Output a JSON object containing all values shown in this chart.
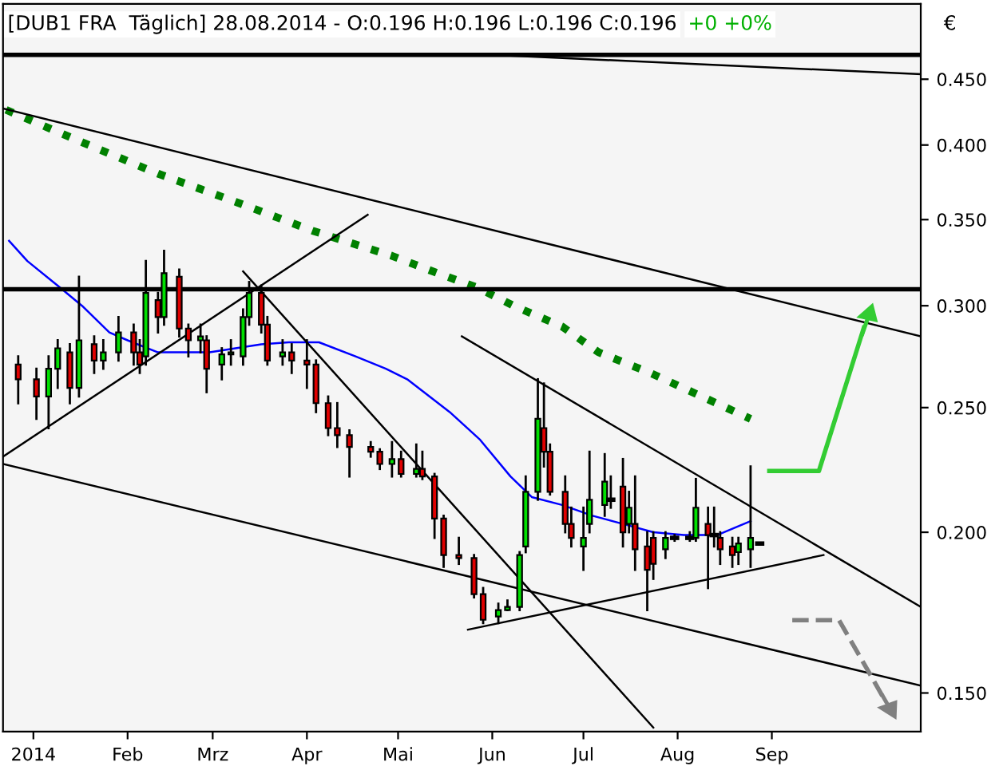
{
  "chart_data": {
    "type": "candlestick",
    "title": "[DUB1 FRA  Täglich] 28.08.2014 - O:0.196 H:0.196 L:0.196 C:0.196",
    "annotations": [
      "+0 +0%"
    ],
    "ylabel": "€",
    "x": [
      "2013-12-27",
      "2014-01-02",
      "2014-01-06",
      "2014-01-09",
      "2014-01-13",
      "2014-01-16",
      "2014-01-21",
      "2014-01-24",
      "2014-01-29",
      "2014-02-03",
      "2014-02-05",
      "2014-02-07",
      "2014-02-11",
      "2014-02-13",
      "2014-02-18",
      "2014-02-21",
      "2014-02-25",
      "2014-02-27",
      "2014-03-04",
      "2014-03-07",
      "2014-03-11",
      "2014-03-13",
      "2014-03-17",
      "2014-03-19",
      "2014-03-24",
      "2014-03-27",
      "2014-04-01",
      "2014-04-04",
      "2014-04-08",
      "2014-04-11",
      "2014-04-15",
      "2014-04-22",
      "2014-04-25",
      "2014-04-29",
      "2014-05-02",
      "2014-05-07",
      "2014-05-09",
      "2014-05-13",
      "2014-05-16",
      "2014-05-21",
      "2014-05-26",
      "2014-05-29",
      "2014-06-03",
      "2014-06-06",
      "2014-06-10",
      "2014-06-12",
      "2014-06-16",
      "2014-06-18",
      "2014-06-20",
      "2014-06-25",
      "2014-06-27",
      "2014-07-01",
      "2014-07-03",
      "2014-07-08",
      "2014-07-10",
      "2014-07-14",
      "2014-07-16",
      "2014-07-18",
      "2014-07-22",
      "2014-07-24",
      "2014-07-28",
      "2014-07-31",
      "2014-08-05",
      "2014-08-07",
      "2014-08-11",
      "2014-08-13",
      "2014-08-15",
      "2014-08-19",
      "2014-08-21",
      "2014-08-25",
      "2014-08-28"
    ],
    "ohlc": [
      [
        0.27,
        0.274,
        0.252,
        0.263
      ],
      [
        0.263,
        0.268,
        0.245,
        0.255
      ],
      [
        0.255,
        0.274,
        0.241,
        0.268
      ],
      [
        0.268,
        0.282,
        0.259,
        0.278
      ],
      [
        0.276,
        0.28,
        0.252,
        0.259
      ],
      [
        0.259,
        0.316,
        0.255,
        0.282
      ],
      [
        0.28,
        0.284,
        0.266,
        0.272
      ],
      [
        0.272,
        0.282,
        0.268,
        0.276
      ],
      [
        0.276,
        0.294,
        0.272,
        0.286
      ],
      [
        0.286,
        0.29,
        0.27,
        0.276
      ],
      [
        0.276,
        0.282,
        0.266,
        0.27
      ],
      [
        0.274,
        0.325,
        0.27,
        0.307
      ],
      [
        0.303,
        0.307,
        0.286,
        0.294
      ],
      [
        0.294,
        0.331,
        0.29,
        0.318
      ],
      [
        0.316,
        0.32,
        0.284,
        0.288
      ],
      [
        0.288,
        0.29,
        0.274,
        0.282
      ],
      [
        0.282,
        0.29,
        0.276,
        0.284
      ],
      [
        0.282,
        0.284,
        0.257,
        0.268
      ],
      [
        0.27,
        0.278,
        0.263,
        0.275
      ],
      [
        0.275,
        0.282,
        0.27,
        0.276
      ],
      [
        0.274,
        0.298,
        0.27,
        0.294
      ],
      [
        0.294,
        0.313,
        0.29,
        0.307
      ],
      [
        0.307,
        0.311,
        0.286,
        0.29
      ],
      [
        0.29,
        0.294,
        0.27,
        0.272
      ],
      [
        0.274,
        0.282,
        0.27,
        0.276
      ],
      [
        0.276,
        0.28,
        0.266,
        0.272
      ],
      [
        0.272,
        0.282,
        0.259,
        0.27
      ],
      [
        0.27,
        0.272,
        0.248,
        0.252
      ],
      [
        0.252,
        0.255,
        0.238,
        0.241
      ],
      [
        0.241,
        0.252,
        0.233,
        0.238
      ],
      [
        0.238,
        0.24,
        0.221,
        0.233
      ],
      [
        0.233,
        0.235,
        0.229,
        0.231
      ],
      [
        0.231,
        0.232,
        0.224,
        0.226
      ],
      [
        0.226,
        0.235,
        0.221,
        0.228
      ],
      [
        0.228,
        0.231,
        0.221,
        0.222
      ],
      [
        0.222,
        0.234,
        0.221,
        0.224
      ],
      [
        0.224,
        0.231,
        0.22,
        0.221
      ],
      [
        0.221,
        0.222,
        0.198,
        0.205
      ],
      [
        0.205,
        0.206,
        0.188,
        0.192
      ],
      [
        0.192,
        0.198,
        0.189,
        0.191
      ],
      [
        0.191,
        0.192,
        0.178,
        0.179
      ],
      [
        0.179,
        0.181,
        0.17,
        0.171
      ],
      [
        0.172,
        0.176,
        0.17,
        0.174
      ],
      [
        0.174,
        0.177,
        0.174,
        0.175
      ],
      [
        0.175,
        0.193,
        0.174,
        0.192
      ],
      [
        0.195,
        0.221,
        0.193,
        0.215
      ],
      [
        0.215,
        0.263,
        0.212,
        0.245
      ],
      [
        0.241,
        0.261,
        0.225,
        0.231
      ],
      [
        0.231,
        0.234,
        0.214,
        0.215
      ],
      [
        0.215,
        0.221,
        0.2,
        0.203
      ],
      [
        0.203,
        0.209,
        0.195,
        0.198
      ],
      [
        0.195,
        0.209,
        0.187,
        0.198
      ],
      [
        0.203,
        0.231,
        0.2,
        0.212
      ],
      [
        0.21,
        0.23,
        0.206,
        0.219
      ],
      [
        0.212,
        0.221,
        0.209,
        0.212
      ],
      [
        0.217,
        0.228,
        0.195,
        0.2
      ],
      [
        0.203,
        0.215,
        0.2,
        0.209
      ],
      [
        0.203,
        0.221,
        0.187,
        0.194
      ],
      [
        0.195,
        0.2,
        0.174,
        0.187
      ],
      [
        0.198,
        0.2,
        0.184,
        0.189
      ],
      [
        0.194,
        0.2,
        0.191,
        0.198
      ],
      [
        0.198,
        0.199,
        0.197,
        0.198
      ],
      [
        0.198,
        0.2,
        0.197,
        0.198
      ],
      [
        0.198,
        0.22,
        0.197,
        0.209
      ],
      [
        0.203,
        0.209,
        0.181,
        0.199
      ],
      [
        0.199,
        0.209,
        0.195,
        0.199
      ],
      [
        0.198,
        0.2,
        0.189,
        0.194
      ],
      [
        0.195,
        0.198,
        0.188,
        0.192
      ],
      [
        0.193,
        0.198,
        0.189,
        0.196
      ],
      [
        0.194,
        0.225,
        0.188,
        0.198
      ],
      [
        0.196,
        0.196,
        0.196,
        0.196
      ]
    ],
    "colors": [
      "#e00000",
      "#e00000",
      "#00e000",
      "#00e000",
      "#e00000",
      "#00e000",
      "#e00000",
      "#00e000",
      "#00e000",
      "#e00000",
      "#e00000",
      "#00e000",
      "#e00000",
      "#00e000",
      "#e00000",
      "#e00000",
      "#00e000",
      "#e00000",
      "#00e000",
      "#00e000",
      "#00e000",
      "#00e000",
      "#e00000",
      "#e00000",
      "#00e000",
      "#e00000",
      "#e00000",
      "#e00000",
      "#e00000",
      "#e00000",
      "#e00000",
      "#e00000",
      "#e00000",
      "#00e000",
      "#e00000",
      "#00e000",
      "#e00000",
      "#e00000",
      "#e00000",
      "#e00000",
      "#e00000",
      "#e00000",
      "#00e000",
      "#00e000",
      "#00e000",
      "#00e000",
      "#00e000",
      "#e00000",
      "#e00000",
      "#e00000",
      "#e00000",
      "#00e000",
      "#00e000",
      "#00e000",
      "#000000",
      "#e00000",
      "#00e000",
      "#e00000",
      "#e00000",
      "#e00000",
      "#00e000",
      "#000000",
      "#000000",
      "#00e000",
      "#e00000",
      "#000000",
      "#e00000",
      "#e00000",
      "#00e000",
      "#00e000",
      "#000000"
    ],
    "series": [
      {
        "type": "line",
        "color": "#0000ff",
        "x": [
          "2013-12-24",
          "2013-12-30",
          "2014-01-09",
          "2014-01-17",
          "2014-01-26",
          "2014-02-01",
          "2014-02-11",
          "2014-02-28",
          "2014-03-17",
          "2014-03-26",
          "2014-04-05",
          "2014-04-17",
          "2014-04-27",
          "2014-05-04",
          "2014-05-18",
          "2014-05-28",
          "2014-06-07",
          "2014-06-14",
          "2014-06-24",
          "2014-07-04",
          "2014-07-14",
          "2014-07-24",
          "2014-08-03",
          "2014-08-14",
          "2014-08-25"
        ],
        "values": [
          0.337,
          0.325,
          0.311,
          0.3,
          0.286,
          0.282,
          0.276,
          0.276,
          0.28,
          0.281,
          0.281,
          0.274,
          0.268,
          0.263,
          0.248,
          0.236,
          0.221,
          0.213,
          0.21,
          0.206,
          0.203,
          0.2,
          0.199,
          0.199,
          0.204
        ]
      },
      {
        "type": "line",
        "color": "#008000",
        "line_style": "dotted",
        "x": [
          "2013-12-23",
          "2014-01-17",
          "2014-02-11",
          "2014-03-09",
          "2014-04-03",
          "2014-04-29",
          "2014-05-14",
          "2014-05-27",
          "2014-06-08",
          "2014-06-24",
          "2014-07-06",
          "2014-07-23",
          "2014-08-09",
          "2014-08-25"
        ],
        "values": [
          0.426,
          0.402,
          0.38,
          0.361,
          0.343,
          0.328,
          0.318,
          0.31,
          0.3,
          0.289,
          0.276,
          0.266,
          0.255,
          0.245
        ]
      },
      {
        "type": "line",
        "color": "#000000",
        "x": [
          "2014-05-24",
          "2014-10-20"
        ],
        "values": [
          0.471,
          0.454
        ]
      },
      {
        "type": "line",
        "color": "#000000",
        "x": [
          "2013-12-22",
          "2014-10-20"
        ],
        "values": [
          0.427,
          0.284
        ]
      },
      {
        "type": "line",
        "color": "#000000",
        "x": [
          "2013-12-22",
          "2014-04-21"
        ],
        "values": [
          0.229,
          0.353
        ]
      },
      {
        "type": "line",
        "color": "#000000",
        "x": [
          "2014-03-11",
          "2014-07-24"
        ],
        "values": [
          0.319,
          0.141
        ]
      },
      {
        "type": "line",
        "color": "#000000",
        "x": [
          "2013-12-22",
          "2014-10-20"
        ],
        "values": [
          0.226,
          0.152
        ]
      },
      {
        "type": "line",
        "color": "#000000",
        "x": [
          "2014-05-24",
          "2014-09-18"
        ],
        "values": [
          0.168,
          0.192
        ]
      },
      {
        "type": "line",
        "color": "#000000",
        "x": [
          "2014-05-22",
          "2014-10-20"
        ],
        "values": [
          0.284,
          0.175
        ]
      }
    ],
    "ref_lines": [
      {
        "axis": "y",
        "value": 0.47,
        "color": "#000000"
      },
      {
        "axis": "y",
        "value": 0.309,
        "color": "#000000"
      }
    ],
    "log": "y",
    "xlim": [
      "2013-12-22",
      "2014-10-20"
    ],
    "ylim": [
      0.14,
      0.515
    ],
    "xticks": [
      {
        "value": "2014-01-01",
        "label": "2014"
      },
      {
        "value": "2014-02-01",
        "label": "Feb"
      },
      {
        "value": "2014-03-01",
        "label": "Mrz"
      },
      {
        "value": "2014-04-01",
        "label": "Apr"
      },
      {
        "value": "2014-05-01",
        "label": "Mai"
      },
      {
        "value": "2014-06-01",
        "label": "Jun"
      },
      {
        "value": "2014-07-01",
        "label": "Jul"
      },
      {
        "value": "2014-08-01",
        "label": "Aug"
      },
      {
        "value": "2014-09-01",
        "label": "Sep"
      }
    ],
    "yticks": [
      {
        "value": 0.15,
        "label": "0.150"
      },
      {
        "value": 0.2,
        "label": "0.200"
      },
      {
        "value": 0.25,
        "label": "0.250"
      },
      {
        "value": 0.3,
        "label": "0.300"
      },
      {
        "value": 0.35,
        "label": "0.350"
      },
      {
        "value": 0.4,
        "label": "0.400"
      },
      {
        "value": 0.45,
        "label": "0.450"
      }
    ],
    "grid": false,
    "legend": false
  }
}
